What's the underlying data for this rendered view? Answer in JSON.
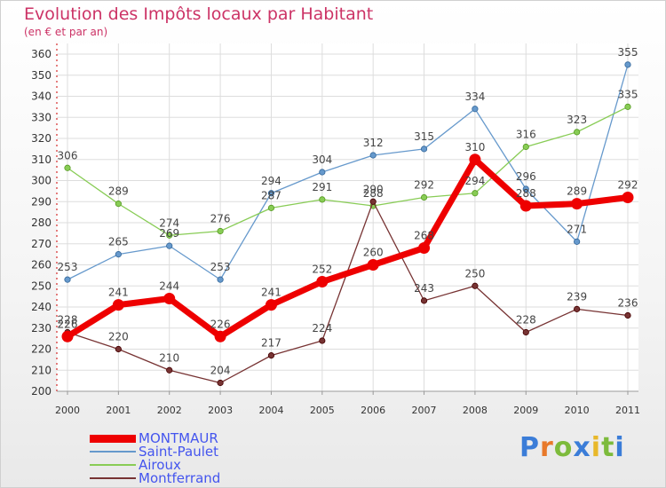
{
  "title": "Evolution des Impôts locaux par Habitant",
  "subtitle": "(en € et par an)",
  "chart_data": {
    "type": "line",
    "title": "Evolution des Impôts locaux par Habitant",
    "subtitle": "(en € et par an)",
    "xlabel": "",
    "ylabel": "",
    "categories": [
      "2000",
      "2001",
      "2002",
      "2003",
      "2004",
      "2005",
      "2006",
      "2007",
      "2008",
      "2009",
      "2010",
      "2011"
    ],
    "ylim": [
      200,
      360
    ],
    "yticks": [
      200,
      210,
      220,
      230,
      240,
      250,
      260,
      270,
      280,
      290,
      300,
      310,
      320,
      330,
      340,
      350,
      360
    ],
    "grid": true,
    "series": [
      {
        "name": "MONTMAUR",
        "color": "#ee0000",
        "values": [
          226,
          241,
          244,
          226,
          241,
          252,
          260,
          268,
          310,
          288,
          289,
          292
        ]
      },
      {
        "name": "Saint-Paulet",
        "color": "#6699cc",
        "values": [
          253,
          265,
          269,
          253,
          294,
          304,
          312,
          315,
          334,
          296,
          271,
          355
        ]
      },
      {
        "name": "Airoux",
        "color": "#88cc55",
        "values": [
          306,
          289,
          274,
          276,
          287,
          291,
          288,
          292,
          294,
          316,
          323,
          335
        ]
      },
      {
        "name": "Montferrand",
        "color": "#773333",
        "values": [
          228,
          220,
          210,
          204,
          217,
          224,
          290,
          243,
          250,
          228,
          239,
          236
        ]
      }
    ],
    "legend_position": "bottom-left"
  },
  "legend": [
    {
      "label": "MONTMAUR",
      "color": "#ee0000"
    },
    {
      "label": "Saint-Paulet",
      "color": "#6699cc"
    },
    {
      "label": "Airoux",
      "color": "#88cc55"
    },
    {
      "label": "Montferrand",
      "color": "#773333"
    }
  ],
  "logo": {
    "letters": [
      "P",
      "r",
      "o",
      "x",
      "i",
      "t",
      "i"
    ],
    "colors": [
      "#3b7dd8",
      "#e8792a",
      "#7dbb3c",
      "#3b7dd8",
      "#e8b82a",
      "#7dbb3c",
      "#3b7dd8"
    ]
  }
}
